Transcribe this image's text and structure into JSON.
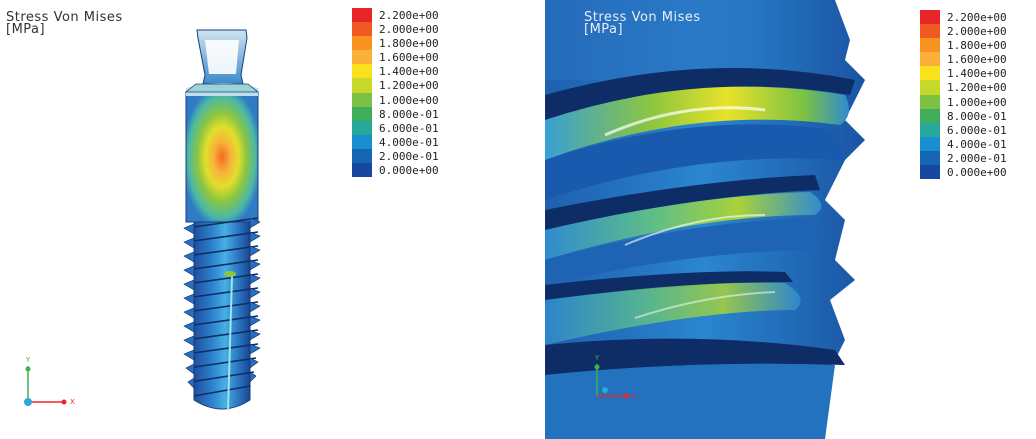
{
  "panels": [
    {
      "title_line1": "Stress Von Mises",
      "title_line2": "[MPa]",
      "legend": {
        "labels": [
          "2.200e+00",
          "2.000e+00",
          "1.800e+00",
          "1.600e+00",
          "1.400e+00",
          "1.200e+00",
          "1.000e+00",
          "8.000e-01",
          "6.000e-01",
          "4.000e-01",
          "2.000e-01",
          "0.000e+00"
        ],
        "colors": [
          "#e8262a",
          "#f05a22",
          "#f7931e",
          "#fbb03b",
          "#f9e21c",
          "#c6d92a",
          "#7cc242",
          "#3fae5a",
          "#28a89a",
          "#1a8fd0",
          "#1565b5",
          "#17479e"
        ]
      },
      "axis": {
        "x_label": "X",
        "y_label": "Y"
      }
    },
    {
      "title_line1": "Stress Von Mises",
      "title_line2": "[MPa]",
      "legend": {
        "labels": [
          "2.200e+00",
          "2.000e+00",
          "1.800e+00",
          "1.600e+00",
          "1.400e+00",
          "1.200e+00",
          "1.000e+00",
          "8.000e-01",
          "6.000e-01",
          "4.000e-01",
          "2.000e-01",
          "0.000e+00"
        ],
        "colors": [
          "#e8262a",
          "#f05a22",
          "#f7931e",
          "#fbb03b",
          "#f9e21c",
          "#c6d92a",
          "#7cc242",
          "#3fae5a",
          "#28a89a",
          "#1a8fd0",
          "#1565b5",
          "#17479e"
        ]
      },
      "axis": {
        "x_label": "X",
        "y_label": "Y"
      }
    }
  ]
}
